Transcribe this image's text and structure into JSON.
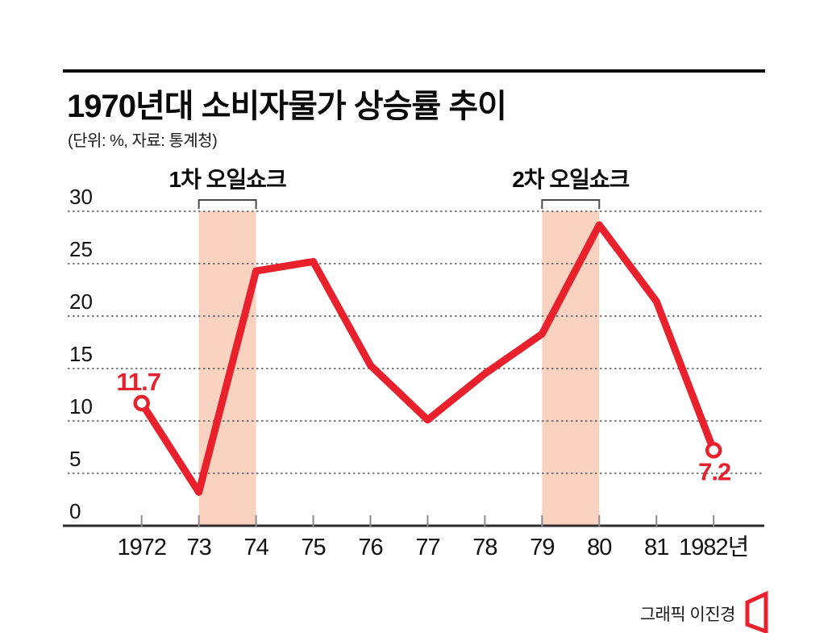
{
  "page": {
    "title": "1970년대 소비자물가 상승률 추이",
    "subtitle": "(단위: %, 자료: 통계청)",
    "credit": "그래픽 이진경"
  },
  "chart_data": {
    "type": "line",
    "title": "1970년대 소비자물가 상승률 추이",
    "unit_note": "(단위: %, 자료: 통계청)",
    "x_labels": [
      "1972",
      "73",
      "74",
      "75",
      "76",
      "77",
      "78",
      "79",
      "80",
      "81",
      "1982년"
    ],
    "values": [
      11.7,
      3.2,
      24.3,
      25.2,
      15.3,
      10.1,
      14.5,
      18.3,
      28.7,
      21.4,
      7.2
    ],
    "yticks": [
      0,
      5,
      10,
      15,
      20,
      25,
      30
    ],
    "ylim": [
      0,
      30
    ],
    "grid": "horizontal-dotted",
    "endpoint_labels": [
      {
        "index": 0,
        "text": "11.7",
        "position": "above"
      },
      {
        "index": 10,
        "text": "7.2",
        "position": "below"
      }
    ],
    "annotations": [
      {
        "label": "1차 오일쇼크",
        "from_index": 1,
        "to_index": 2
      },
      {
        "label": "2차 오일쇼크",
        "from_index": 7,
        "to_index": 8
      }
    ],
    "colors": {
      "line": "#e8212d",
      "band": "#fad2c0",
      "grid": "#555555",
      "axis": "#2b2b2b",
      "tick": "#8a8a8a",
      "bracket": "#4a4a4a",
      "text": "#111111",
      "label_red": "#e8212d"
    }
  }
}
